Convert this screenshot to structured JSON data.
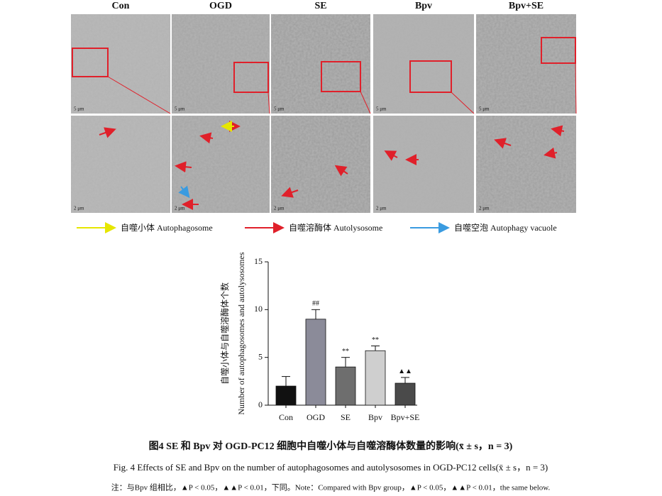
{
  "figure": {
    "panels": [
      "Con",
      "OGD",
      "SE",
      "Bpv",
      "Bpv+SE"
    ],
    "scale_top": "5 μm",
    "scale_bottom": "2 μm",
    "legend": [
      {
        "label": "自噬小体  Autophagosome",
        "color": "#e6e600"
      },
      {
        "label": "自噬溶酶体  Autolysosome",
        "color": "#e0202a"
      },
      {
        "label": "自噬空泡  Autophagy vacuole",
        "color": "#3a9be0"
      }
    ]
  },
  "chart_data": {
    "type": "bar",
    "ylabel": [
      "自噬小体与自噬溶酶体个数",
      "Number of autophagosomes and autolysosomes"
    ],
    "categories": [
      "Con",
      "OGD",
      "SE",
      "Bpv",
      "Bpv+SE"
    ],
    "values": [
      2,
      9,
      4,
      5.7,
      2.3
    ],
    "errors": [
      1,
      1,
      1,
      0.5,
      0.6
    ],
    "annotations": [
      null,
      "##",
      "**",
      "**",
      "▲▲"
    ],
    "colors": [
      "#111111",
      "#8b8b99",
      "#6e6e6e",
      "#cfcfcf",
      "#4a4a4a"
    ],
    "ylim": [
      0,
      15
    ],
    "yticks": [
      0,
      5,
      10,
      15
    ]
  },
  "caption": {
    "cn": "图4   SE 和 Bpv 对 OGD-PC12 细胞中自噬小体与自噬溶酶体数量的影响(x̄ ± s，n = 3)",
    "en": "Fig. 4    Effects of SE and Bpv on the number of autophagosomes and autolysosomes in OGD-PC12 cells(x̄ ± s，n = 3)",
    "note": "注：与Bpv 组相比，▲P < 0.05，▲▲P < 0.01，下同。Note：Compared with Bpv group，▲P < 0.05，▲▲P < 0.01，the same below."
  }
}
